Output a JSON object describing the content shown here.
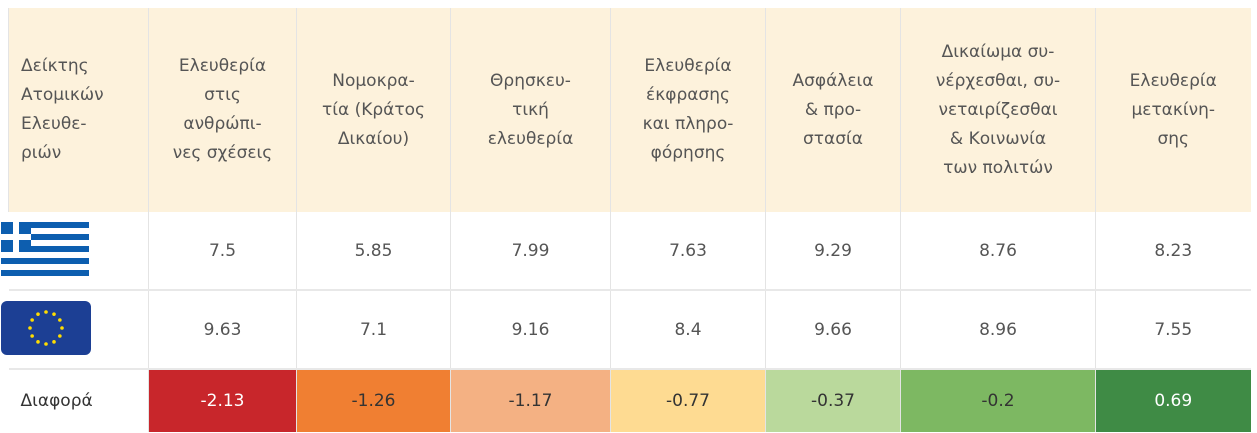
{
  "table": {
    "header": [
      [
        "Δείκτης",
        "Ατομικών",
        "Ελευθε-",
        "ριών"
      ],
      [
        "Ελευθερία",
        "στις",
        "ανθρώπι-",
        "νες σχέσεις"
      ],
      [
        "Νομοκρα-",
        "τία (Κράτος",
        "Δικαίου)"
      ],
      [
        "Θρησκευ-",
        "τική",
        "ελευθερία"
      ],
      [
        "Ελευθερία",
        "έκφρασης",
        "και πληρο-",
        "φόρησης"
      ],
      [
        "Ασφάλεια",
        "& προ-",
        "στασία"
      ],
      [
        "Δικαίωμα συ-",
        "νέρχεσθαι, συ-",
        "νεταιρίζεσθαι",
        "& Κοινωνία",
        "των πολιτών"
      ],
      [
        "Ελευθερία",
        "μετακίνη-",
        "σης"
      ]
    ],
    "rows": [
      {
        "flag": "greece",
        "values": [
          7.5,
          5.85,
          7.99,
          7.63,
          9.29,
          8.76,
          8.23
        ]
      },
      {
        "flag": "eu",
        "values": [
          9.63,
          7.1,
          9.16,
          8.4,
          9.66,
          8.96,
          7.55
        ]
      }
    ],
    "difference": {
      "label": "Διαφορά",
      "values": [
        -2.13,
        -1.26,
        -1.17,
        -0.77,
        -0.37,
        -0.2,
        0.69
      ],
      "colors": [
        "#c8262b",
        "#f07f32",
        "#f4b183",
        "#fedb92",
        "#bad99c",
        "#7db862",
        "#3f8b45"
      ],
      "text_colors": [
        "#ffffff",
        "#333333",
        "#333333",
        "#333333",
        "#333333",
        "#333333",
        "#ffffff"
      ]
    }
  }
}
